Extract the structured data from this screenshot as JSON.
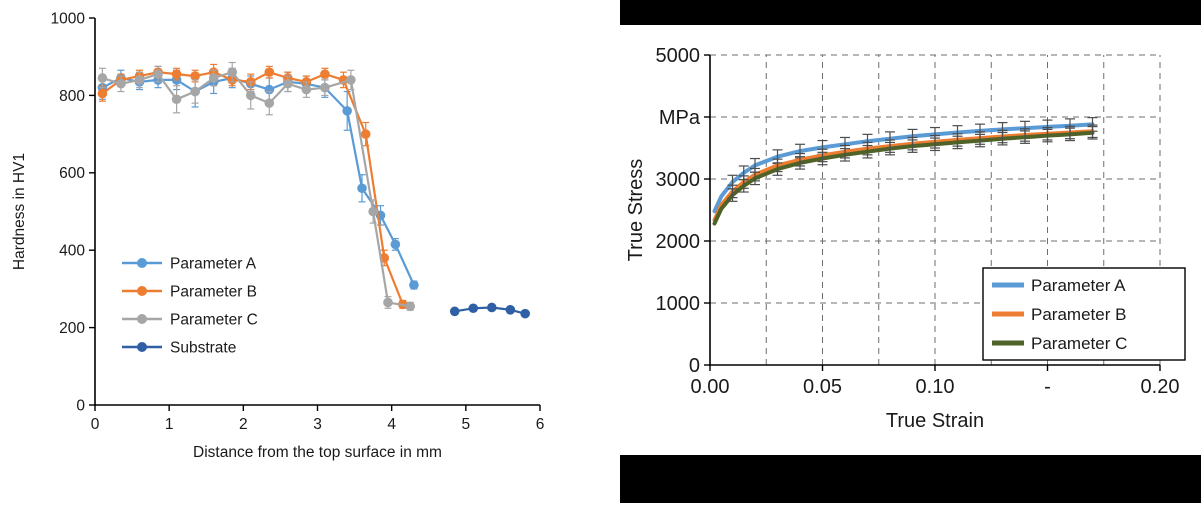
{
  "figure": {
    "background": "#ffffff",
    "right_panel_background": "#000000"
  },
  "chart_data": [
    {
      "id": "hardness-profile",
      "type": "line",
      "title": "",
      "xlabel": "Distance from the top surface in mm",
      "ylabel": "Hardness in HV1",
      "xlim": [
        0,
        6
      ],
      "ylim": [
        0,
        1000
      ],
      "xticks": [
        0,
        1,
        2,
        3,
        4,
        5,
        6
      ],
      "xtick_labels": [
        "0",
        "1",
        "2",
        "3",
        "4",
        "5",
        "6"
      ],
      "yticks": [
        0,
        200,
        400,
        600,
        800,
        1000
      ],
      "ytick_labels": [
        "0",
        "200",
        "400",
        "600",
        "800",
        "1000"
      ],
      "grid": false,
      "legend_position": "lower-left",
      "series": [
        {
          "name": "Parameter A",
          "color": "#5b9bd5",
          "x": [
            0.1,
            0.35,
            0.6,
            0.85,
            1.1,
            1.35,
            1.6,
            1.85,
            2.1,
            2.35,
            2.6,
            2.85,
            3.1,
            3.4,
            3.6,
            3.85,
            4.05,
            4.3
          ],
          "y": [
            820,
            845,
            835,
            840,
            840,
            810,
            835,
            845,
            830,
            815,
            835,
            830,
            820,
            760,
            560,
            490,
            415,
            310
          ],
          "err": [
            30,
            20,
            20,
            20,
            25,
            40,
            30,
            25,
            20,
            30,
            25,
            20,
            25,
            50,
            35,
            25,
            15,
            10
          ]
        },
        {
          "name": "Parameter B",
          "color": "#ed7d31",
          "x": [
            0.1,
            0.35,
            0.6,
            0.85,
            1.1,
            1.35,
            1.6,
            1.85,
            2.1,
            2.35,
            2.6,
            2.85,
            3.1,
            3.35,
            3.65,
            3.9,
            4.15
          ],
          "y": [
            805,
            840,
            850,
            860,
            855,
            850,
            860,
            840,
            835,
            860,
            845,
            835,
            855,
            840,
            700,
            380,
            260
          ],
          "err": [
            20,
            15,
            15,
            15,
            15,
            15,
            20,
            15,
            20,
            15,
            15,
            15,
            15,
            20,
            30,
            20,
            10
          ]
        },
        {
          "name": "Parameter C",
          "color": "#a6a6a6",
          "x": [
            0.1,
            0.35,
            0.6,
            0.85,
            1.1,
            1.35,
            1.6,
            1.85,
            2.1,
            2.35,
            2.6,
            2.85,
            3.1,
            3.45,
            3.75,
            3.95,
            4.25
          ],
          "y": [
            845,
            830,
            840,
            855,
            790,
            810,
            845,
            860,
            800,
            780,
            830,
            815,
            820,
            840,
            500,
            265,
            255
          ],
          "err": [
            25,
            20,
            20,
            20,
            35,
            30,
            20,
            25,
            35,
            30,
            20,
            20,
            20,
            25,
            30,
            15,
            10
          ]
        },
        {
          "name": "Substrate",
          "color": "#2f5fa5",
          "x": [
            4.85,
            5.1,
            5.35,
            5.6,
            5.8
          ],
          "y": [
            242,
            250,
            252,
            246,
            236
          ],
          "err": null
        }
      ]
    },
    {
      "id": "true-stress-strain",
      "type": "line",
      "title": "",
      "xlabel": "True Strain",
      "ylabel": "True Stress",
      "y_unit_label": "MPa",
      "xlim": [
        0,
        0.2
      ],
      "ylim": [
        0,
        5000
      ],
      "xticks": [
        0,
        0.05,
        0.1,
        0.15,
        0.2
      ],
      "xtick_labels": [
        "0.00",
        "0.05",
        "0.10",
        "-",
        "0.20"
      ],
      "yticks": [
        0,
        1000,
        2000,
        3000,
        4000,
        5000
      ],
      "ytick_labels": [
        "0",
        "1000",
        "2000",
        "3000",
        "MPa",
        "5000"
      ],
      "grid": true,
      "legend_position": "lower-right",
      "series": [
        {
          "name": "Parameter A",
          "color": "#5b9bd5",
          "x": [
            0.002,
            0.005,
            0.01,
            0.015,
            0.02,
            0.03,
            0.04,
            0.05,
            0.06,
            0.07,
            0.08,
            0.09,
            0.1,
            0.11,
            0.12,
            0.13,
            0.14,
            0.15,
            0.16,
            0.17
          ],
          "y": [
            2480,
            2720,
            2950,
            3100,
            3220,
            3360,
            3450,
            3510,
            3560,
            3610,
            3650,
            3690,
            3720,
            3750,
            3775,
            3800,
            3820,
            3840,
            3860,
            3880
          ],
          "err": 110
        },
        {
          "name": "Parameter B",
          "color": "#ed7d31",
          "x": [
            0.002,
            0.005,
            0.01,
            0.015,
            0.02,
            0.03,
            0.04,
            0.05,
            0.06,
            0.07,
            0.08,
            0.09,
            0.1,
            0.11,
            0.12,
            0.13,
            0.14,
            0.15,
            0.16,
            0.17
          ],
          "y": [
            2340,
            2580,
            2800,
            2950,
            3070,
            3220,
            3310,
            3380,
            3440,
            3490,
            3530,
            3570,
            3600,
            3630,
            3660,
            3685,
            3710,
            3730,
            3750,
            3770
          ],
          "err": 100
        },
        {
          "name": "Parameter C",
          "color": "#4f6228",
          "x": [
            0.002,
            0.005,
            0.01,
            0.015,
            0.02,
            0.03,
            0.04,
            0.05,
            0.06,
            0.07,
            0.08,
            0.09,
            0.1,
            0.11,
            0.12,
            0.13,
            0.14,
            0.15,
            0.16,
            0.17
          ],
          "y": [
            2280,
            2520,
            2740,
            2890,
            3010,
            3160,
            3260,
            3330,
            3390,
            3440,
            3490,
            3530,
            3560,
            3590,
            3620,
            3650,
            3675,
            3700,
            3720,
            3745
          ],
          "err": 100
        }
      ]
    }
  ]
}
